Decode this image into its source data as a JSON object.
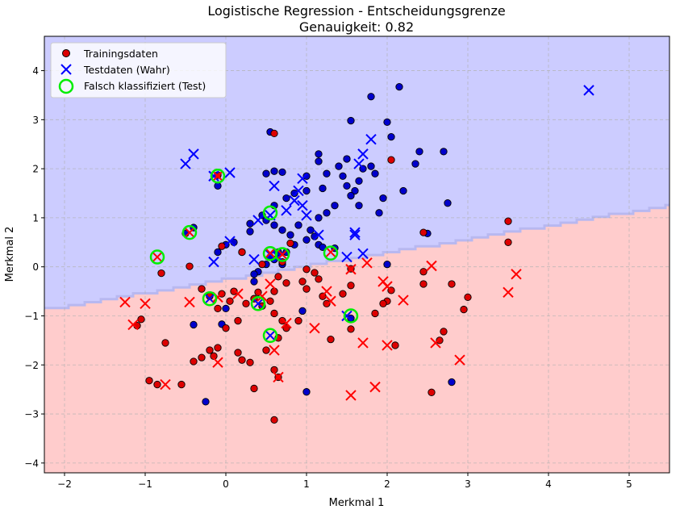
{
  "chart_data": {
    "type": "scatter",
    "title": "Logistische Regression - Entscheidungsgrenze",
    "subtitle": "Genauigkeit: 0.82",
    "xlabel": "Merkmal 1",
    "ylabel": "Merkmal 2",
    "xlim": [
      -2.25,
      5.5
    ],
    "ylim": [
      -4.2,
      4.7
    ],
    "xticks": [
      -2,
      -1,
      0,
      1,
      2,
      3,
      4,
      5
    ],
    "yticks": [
      -4,
      -3,
      -2,
      -1,
      0,
      1,
      2,
      3,
      4
    ],
    "grid": true,
    "legend_position": "top-left",
    "colors": {
      "region_class1": "#ccccff",
      "region_class0": "#ffcccc",
      "class1": "#0000cc",
      "class0": "#dd0000",
      "test_class1": "#0000ff",
      "test_class0": "#ff0000",
      "misclassified": "#00ee00"
    },
    "decision_boundary": {
      "description_slope": 0.27,
      "points": [
        [
          -2.25,
          -0.87
        ],
        [
          5.5,
          1.26
        ]
      ]
    },
    "legend": [
      {
        "label": "Trainingsdaten",
        "marker": "circle"
      },
      {
        "label": "Testdaten (Wahr)",
        "marker": "x"
      },
      {
        "label": "Falsch klassifiziert (Test)",
        "marker": "ring"
      }
    ],
    "series": [
      {
        "name": "Trainingsdaten",
        "class": 1,
        "points": [
          [
            0.55,
            2.75
          ],
          [
            1.55,
            2.98
          ],
          [
            1.8,
            3.47
          ],
          [
            2.15,
            3.67
          ],
          [
            2.0,
            2.95
          ],
          [
            2.05,
            2.65
          ],
          [
            0.5,
            1.9
          ],
          [
            0.6,
            1.95
          ],
          [
            0.7,
            1.93
          ],
          [
            1.0,
            1.85
          ],
          [
            1.15,
            2.3
          ],
          [
            1.15,
            2.15
          ],
          [
            1.5,
            2.2
          ],
          [
            1.7,
            2.0
          ],
          [
            1.8,
            2.05
          ],
          [
            1.85,
            1.9
          ],
          [
            1.65,
            1.75
          ],
          [
            1.45,
            1.85
          ],
          [
            1.25,
            1.9
          ],
          [
            1.4,
            2.05
          ],
          [
            1.2,
            1.6
          ],
          [
            1.5,
            1.65
          ],
          [
            1.6,
            1.55
          ],
          [
            1.55,
            1.45
          ],
          [
            1.65,
            1.25
          ],
          [
            1.35,
            1.25
          ],
          [
            1.25,
            1.1
          ],
          [
            1.0,
            1.55
          ],
          [
            0.85,
            1.5
          ],
          [
            0.75,
            1.4
          ],
          [
            0.6,
            1.25
          ],
          [
            0.45,
            1.05
          ],
          [
            0.3,
            0.88
          ],
          [
            0.3,
            0.72
          ],
          [
            0.5,
            0.95
          ],
          [
            0.6,
            0.85
          ],
          [
            0.7,
            0.75
          ],
          [
            0.8,
            0.65
          ],
          [
            0.9,
            0.85
          ],
          [
            1.0,
            0.55
          ],
          [
            1.15,
            0.45
          ],
          [
            1.2,
            0.4
          ],
          [
            1.35,
            0.38
          ],
          [
            0.85,
            0.45
          ],
          [
            0.75,
            0.3
          ],
          [
            0.6,
            0.15
          ],
          [
            0.5,
            0.05
          ],
          [
            0.7,
            0.05
          ],
          [
            0.4,
            -0.1
          ],
          [
            0.35,
            -0.15
          ],
          [
            0.2,
            0.3
          ],
          [
            0.1,
            0.5
          ],
          [
            0.0,
            0.45
          ],
          [
            -0.1,
            0.3
          ],
          [
            -0.4,
            0.8
          ],
          [
            -0.5,
            0.68
          ],
          [
            -0.1,
            1.65
          ],
          [
            2.4,
            2.35
          ],
          [
            2.35,
            2.1
          ],
          [
            2.7,
            2.35
          ],
          [
            2.75,
            1.3
          ],
          [
            2.2,
            1.55
          ],
          [
            1.95,
            1.4
          ],
          [
            1.9,
            1.1
          ],
          [
            2.5,
            0.68
          ],
          [
            2.0,
            0.05
          ],
          [
            1.1,
            0.62
          ],
          [
            -0.4,
            -1.18
          ],
          [
            -0.05,
            -1.17
          ],
          [
            -0.25,
            -2.75
          ],
          [
            1.0,
            -2.55
          ],
          [
            2.8,
            -2.35
          ],
          [
            1.55,
            -1.05
          ],
          [
            0.95,
            -0.9
          ],
          [
            0.0,
            -0.85
          ],
          [
            0.35,
            -0.3
          ],
          [
            0.55,
            0.2
          ],
          [
            0.65,
            0.3
          ],
          [
            1.15,
            1.0
          ],
          [
            1.05,
            0.75
          ]
        ]
      },
      {
        "name": "Trainingsdaten",
        "class": 0,
        "points": [
          [
            0.6,
            2.72
          ],
          [
            2.05,
            2.18
          ],
          [
            -0.1,
            1.87
          ],
          [
            3.5,
            0.93
          ],
          [
            2.45,
            0.7
          ],
          [
            3.5,
            0.5
          ],
          [
            0.8,
            0.48
          ],
          [
            0.2,
            0.3
          ],
          [
            -0.05,
            0.42
          ],
          [
            -0.45,
            0.01
          ],
          [
            -0.8,
            -0.13
          ],
          [
            0.65,
            -0.2
          ],
          [
            0.75,
            -0.33
          ],
          [
            1.15,
            -0.25
          ],
          [
            1.55,
            -0.38
          ],
          [
            1.55,
            -0.04
          ],
          [
            2.45,
            -0.1
          ],
          [
            2.45,
            -0.35
          ],
          [
            2.8,
            -0.35
          ],
          [
            3.0,
            -0.62
          ],
          [
            2.95,
            -0.87
          ],
          [
            2.0,
            -0.7
          ],
          [
            1.95,
            -0.75
          ],
          [
            2.05,
            -0.48
          ],
          [
            1.45,
            -0.55
          ],
          [
            1.2,
            -0.6
          ],
          [
            1.0,
            -0.45
          ],
          [
            0.95,
            -0.3
          ],
          [
            0.6,
            -0.5
          ],
          [
            0.55,
            -0.7
          ],
          [
            0.45,
            -0.8
          ],
          [
            0.35,
            -0.65
          ],
          [
            0.25,
            -0.75
          ],
          [
            0.1,
            -0.5
          ],
          [
            0.05,
            -0.7
          ],
          [
            -0.1,
            -0.85
          ],
          [
            -0.3,
            -0.45
          ],
          [
            -0.2,
            -0.6
          ],
          [
            -0.05,
            -0.55
          ],
          [
            -1.05,
            -1.07
          ],
          [
            -1.1,
            -1.2
          ],
          [
            -0.75,
            -1.55
          ],
          [
            -0.4,
            -1.93
          ],
          [
            -0.2,
            -1.7
          ],
          [
            -0.1,
            -1.65
          ],
          [
            -0.15,
            -1.82
          ],
          [
            -0.55,
            -2.4
          ],
          [
            -0.85,
            -2.4
          ],
          [
            -0.95,
            -2.32
          ],
          [
            0.35,
            -2.48
          ],
          [
            0.6,
            -2.1
          ],
          [
            0.65,
            -2.25
          ],
          [
            0.6,
            -3.12
          ],
          [
            0.65,
            -1.45
          ],
          [
            0.75,
            -1.25
          ],
          [
            0.7,
            -1.1
          ],
          [
            0.6,
            -0.95
          ],
          [
            0.9,
            -1.1
          ],
          [
            1.25,
            -0.75
          ],
          [
            1.3,
            -1.48
          ],
          [
            1.55,
            -1.27
          ],
          [
            1.85,
            -0.95
          ],
          [
            2.1,
            -1.6
          ],
          [
            2.7,
            -1.32
          ],
          [
            2.65,
            -1.5
          ],
          [
            2.55,
            -2.56
          ],
          [
            0.5,
            -1.7
          ],
          [
            0.3,
            -1.95
          ],
          [
            0.2,
            -1.9
          ],
          [
            0.15,
            -1.75
          ],
          [
            0.0,
            -1.25
          ],
          [
            0.4,
            -0.52
          ],
          [
            0.7,
            0.1
          ],
          [
            0.45,
            0.05
          ],
          [
            1.1,
            -0.12
          ],
          [
            1.0,
            -0.05
          ],
          [
            0.15,
            -1.1
          ],
          [
            -0.3,
            -1.85
          ]
        ]
      },
      {
        "name": "Testdaten (Wahr)",
        "class": 1,
        "points": [
          [
            -0.5,
            2.1
          ],
          [
            -0.4,
            2.3
          ],
          [
            0.05,
            1.92
          ],
          [
            -0.15,
            1.85
          ],
          [
            0.6,
            1.65
          ],
          [
            0.85,
            1.35
          ],
          [
            0.95,
            1.25
          ],
          [
            0.9,
            1.55
          ],
          [
            1.0,
            1.05
          ],
          [
            0.95,
            1.8
          ],
          [
            1.8,
            2.6
          ],
          [
            1.7,
            2.3
          ],
          [
            1.65,
            2.1
          ],
          [
            1.6,
            0.65
          ],
          [
            1.15,
            0.65
          ],
          [
            1.5,
            0.2
          ],
          [
            1.7,
            0.27
          ],
          [
            1.6,
            0.7
          ],
          [
            0.05,
            0.52
          ],
          [
            -0.15,
            0.1
          ],
          [
            0.35,
            0.15
          ],
          [
            0.55,
            0.25
          ],
          [
            0.65,
            0.2
          ],
          [
            0.4,
            0.95
          ],
          [
            0.55,
            1.05
          ],
          [
            0.75,
            1.15
          ],
          [
            4.5,
            3.6
          ],
          [
            0.55,
            -1.4
          ],
          [
            -0.2,
            -0.65
          ],
          [
            1.5,
            -1.0
          ],
          [
            0.4,
            -0.75
          ]
        ]
      },
      {
        "name": "Testdaten (Wahr)",
        "class": 0,
        "points": [
          [
            -1.25,
            -0.72
          ],
          [
            -1.0,
            -0.75
          ],
          [
            -1.15,
            -1.18
          ],
          [
            -0.45,
            -0.72
          ],
          [
            -0.1,
            -0.62
          ],
          [
            0.15,
            -0.55
          ],
          [
            -0.75,
            -2.4
          ],
          [
            -0.1,
            -1.95
          ],
          [
            0.6,
            -1.7
          ],
          [
            0.65,
            -2.25
          ],
          [
            0.75,
            -1.15
          ],
          [
            1.1,
            -1.25
          ],
          [
            1.25,
            -0.5
          ],
          [
            1.3,
            -0.7
          ],
          [
            1.55,
            -0.05
          ],
          [
            1.75,
            0.08
          ],
          [
            1.95,
            -0.3
          ],
          [
            2.0,
            -0.4
          ],
          [
            2.2,
            -0.68
          ],
          [
            2.55,
            0.02
          ],
          [
            2.6,
            -1.55
          ],
          [
            2.9,
            -1.9
          ],
          [
            3.5,
            -0.52
          ],
          [
            3.6,
            -0.15
          ],
          [
            1.55,
            -2.62
          ],
          [
            1.85,
            -2.45
          ],
          [
            2.0,
            -1.6
          ],
          [
            1.7,
            -1.55
          ],
          [
            0.55,
            -0.35
          ],
          [
            0.45,
            -0.6
          ],
          [
            -0.85,
            0.2
          ],
          [
            -0.45,
            0.7
          ],
          [
            -0.1,
            1.85
          ],
          [
            0.55,
            0.28
          ],
          [
            0.7,
            0.25
          ],
          [
            1.3,
            0.3
          ]
        ]
      },
      {
        "name": "Falsch klassifiziert (Test)",
        "points": [
          [
            -0.1,
            1.85
          ],
          [
            0.55,
            1.1
          ],
          [
            -0.45,
            0.7
          ],
          [
            -0.85,
            0.2
          ],
          [
            0.55,
            0.27
          ],
          [
            0.7,
            0.25
          ],
          [
            1.3,
            0.28
          ],
          [
            -0.2,
            -0.65
          ],
          [
            0.4,
            -0.75
          ],
          [
            1.55,
            -1.0
          ],
          [
            0.55,
            -1.4
          ]
        ]
      }
    ]
  }
}
